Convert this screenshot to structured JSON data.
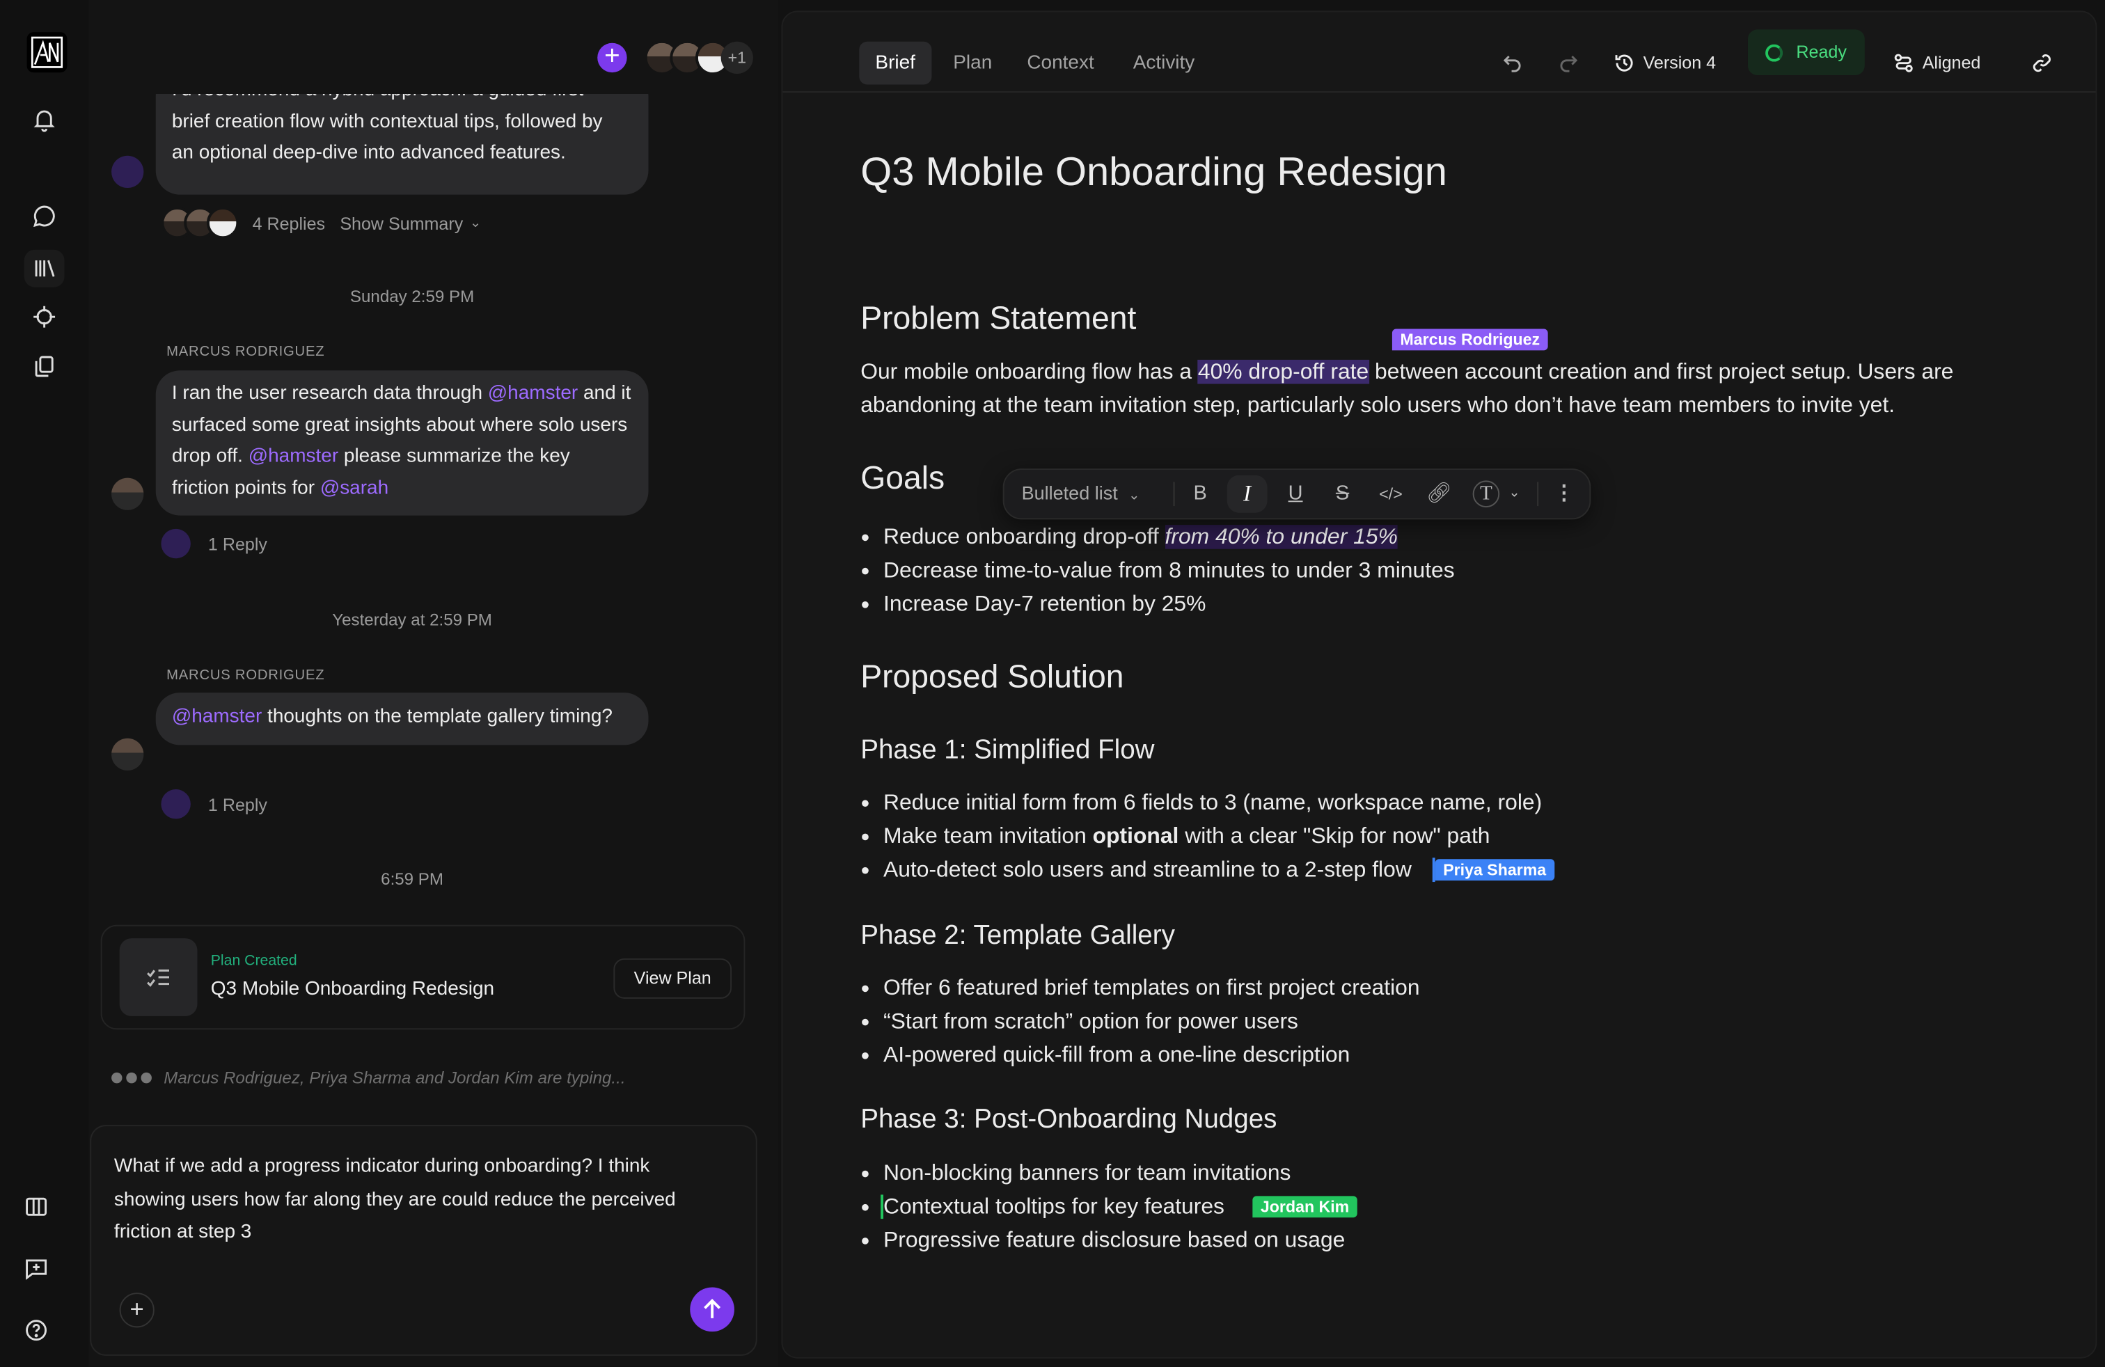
{
  "rail": {
    "icons": [
      "logo",
      "bell-icon",
      "chat-icon",
      "library-icon",
      "target-icon",
      "copy-icon",
      "columns-icon",
      "feedback-icon",
      "help-icon"
    ]
  },
  "chat": {
    "header": {
      "extra_count": "+1"
    },
    "messages": [
      {
        "lines": [
          "I'd recommend a hybrid approach: a guided first-",
          "brief creation flow with contextual tips, followed by",
          "an optional deep-dive into advanced features."
        ],
        "replies": "4 Replies",
        "summary": "Show Summary"
      },
      {
        "timestamp": "Sunday 2:59 PM",
        "sender": "MARCUS RODRIGUEZ",
        "parts": [
          [
            "I ran the user research data through ",
            ""
          ],
          [
            "@hamster",
            "m"
          ],
          [
            " and it surfaced some great insights about where solo users drop off. ",
            ""
          ],
          [
            "@hamster",
            "m"
          ],
          [
            " please summarize the key friction points for ",
            ""
          ],
          [
            "@sarah",
            "m"
          ]
        ],
        "replies": "1 Reply"
      },
      {
        "timestamp": "Yesterday at 2:59 PM",
        "sender": "MARCUS RODRIGUEZ",
        "parts": [
          [
            "@hamster",
            "m"
          ],
          [
            " thoughts on the template gallery timing?",
            ""
          ]
        ],
        "replies": "1 Reply"
      }
    ],
    "last_timestamp": "6:59 PM",
    "plan_card": {
      "status": "Plan Created",
      "title": "Q3 Mobile Onboarding Redesign",
      "button": "View Plan"
    },
    "typing": "Marcus Rodriguez, Priya Sharma and Jordan Kim are typing...",
    "composer": {
      "value": "What if we add a progress indicator during onboarding? I think showing users how far along they are could reduce the perceived friction at step 3"
    }
  },
  "doc": {
    "tabs": [
      "Brief",
      "Plan",
      "Context",
      "Activity"
    ],
    "active_tab": "Brief",
    "version": "Version 4",
    "status": "Ready",
    "alignment": "Aligned",
    "colors": {
      "accent": "#7c3aed",
      "ready": "#22c55e",
      "marcus": "#8b5cf6",
      "priya": "#3b82f6",
      "jordan": "#22c55e"
    },
    "title": "Q3 Mobile Onboarding Redesign",
    "problem": {
      "heading": "Problem Statement",
      "before": "Our mobile onboarding flow has a ",
      "highlight": "40% drop-off rate",
      "after": " between account creation and first project setup. Users are abandoning at the team invitation step, particularly solo users who don’t have team members to invite yet."
    },
    "goals": {
      "heading": "Goals",
      "items": [
        {
          "before": "Reduce onboarding drop-off ",
          "em": "from 40% to under 15%"
        },
        {
          "before": "Decrease time-to-value from 8 minutes to under 3 minutes"
        },
        {
          "before": "Increase Day-7 retention by 25%"
        }
      ]
    },
    "solution": {
      "heading": "Proposed Solution"
    },
    "phase1": {
      "heading": "Phase 1: Simplified Flow",
      "items": [
        "Reduce initial form from 6 fields to 3 (name, workspace name, role)"
      ],
      "item2_before": "Make team invitation ",
      "item2_bold": "optional",
      "item2_after": " with a clear \"Skip for now\" path",
      "item3": "Auto-detect solo users and streamline to a 2-step flow"
    },
    "phase2": {
      "heading": "Phase 2: Template Gallery",
      "items": [
        "Offer 6 featured brief templates on first project creation",
        "“Start from scratch” option for power users",
        "AI-powered quick-fill from a one-line description"
      ]
    },
    "phase3": {
      "heading": "Phase 3: Post-Onboarding Nudges",
      "items": [
        "Non-blocking banners for team invitations",
        "Contextual tooltips for key features",
        "Progressive feature disclosure based on usage"
      ]
    },
    "cursors": {
      "marcus": "Marcus Rodriguez",
      "priya": "Priya Sharma",
      "jordan": "Jordan Kim"
    },
    "toolbar": {
      "block_type": "Bulleted list",
      "active": "italic"
    }
  }
}
